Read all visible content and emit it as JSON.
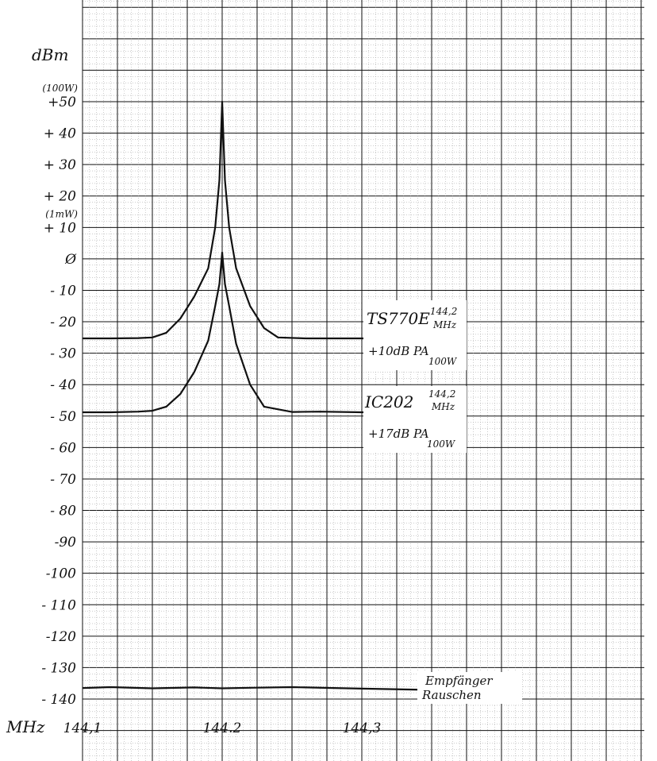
{
  "chart_data": {
    "type": "line",
    "title": "",
    "ylabel": "dBm",
    "xlabel": "MHz",
    "ylim": [
      -145,
      60
    ],
    "xlim": [
      144.1,
      144.35
    ],
    "grid": true,
    "y_ticks": [
      {
        "value": 50,
        "label": "+50",
        "note": "(100W)"
      },
      {
        "value": 40,
        "label": "+ 40"
      },
      {
        "value": 30,
        "label": "+ 30"
      },
      {
        "value": 20,
        "label": "+ 20"
      },
      {
        "value": 10,
        "label": "+ 10",
        "note": "(1mW)"
      },
      {
        "value": 0,
        "label": "Ø"
      },
      {
        "value": -10,
        "label": "- 10"
      },
      {
        "value": -20,
        "label": "- 20"
      },
      {
        "value": -30,
        "label": "- 30"
      },
      {
        "value": -40,
        "label": "- 40"
      },
      {
        "value": -50,
        "label": "- 50"
      },
      {
        "value": -60,
        "label": "- 60"
      },
      {
        "value": -70,
        "label": "- 70"
      },
      {
        "value": -80,
        "label": "- 80"
      },
      {
        "value": -90,
        "label": "-90"
      },
      {
        "value": -100,
        "label": "-100"
      },
      {
        "value": -110,
        "label": "- 110"
      },
      {
        "value": -120,
        "label": "-120"
      },
      {
        "value": -130,
        "label": "- 130"
      },
      {
        "value": -140,
        "label": "- 140"
      }
    ],
    "x_ticks": [
      {
        "value": 144.1,
        "label": "144,1"
      },
      {
        "value": 144.2,
        "label": "144.2"
      },
      {
        "value": 144.3,
        "label": "144,3"
      }
    ],
    "series": [
      {
        "x": [
          144.1,
          144.12,
          144.14,
          144.15,
          144.16,
          144.17,
          144.18,
          144.19,
          144.195,
          144.198,
          144.2,
          144.202,
          144.205,
          144.21,
          144.22,
          144.23,
          144.24,
          144.26,
          144.28,
          144.3,
          144.35
        ],
        "y": [
          -25.3,
          -25.3,
          -25.2,
          -25.0,
          -23.5,
          -19,
          -12,
          -3,
          10,
          25,
          50,
          25,
          10,
          -3,
          -15,
          -22,
          -25,
          -25.3,
          -25.3,
          -25.3,
          -25.3
        ]
      },
      {
        "x": [
          144.1,
          144.12,
          144.14,
          144.15,
          144.16,
          144.17,
          144.18,
          144.19,
          144.195,
          144.198,
          144.2,
          144.202,
          144.205,
          144.21,
          144.22,
          144.23,
          144.25,
          144.27,
          144.3,
          144.35
        ],
        "y": [
          -48.8,
          -48.8,
          -48.6,
          -48.3,
          -47,
          -43,
          -36,
          -26,
          -15,
          -8,
          2,
          -8,
          -15,
          -27,
          -40,
          -47,
          -48.7,
          -48.6,
          -48.8,
          -48.8
        ]
      },
      {
        "x": [
          144.1,
          144.12,
          144.15,
          144.18,
          144.2,
          144.22,
          144.25,
          144.28,
          144.3,
          144.35
        ],
        "y": [
          -136.5,
          -136.2,
          -136.6,
          -136.3,
          -136.6,
          -136.4,
          -136.2,
          -136.5,
          -136.7,
          -137.1
        ]
      }
    ],
    "annotations": [
      {
        "text": "TS770E",
        "sup": "144,2",
        "sub": "MHz",
        "line2": "+10dB PA",
        "line2_sub": "100W"
      },
      {
        "text": "IC202",
        "sup": "144,2",
        "sub": "MHz",
        "line2": "+17dB PA",
        "line2_sub": "100W"
      },
      {
        "text": "Empfänger",
        "line2": "Rauschen"
      }
    ]
  }
}
